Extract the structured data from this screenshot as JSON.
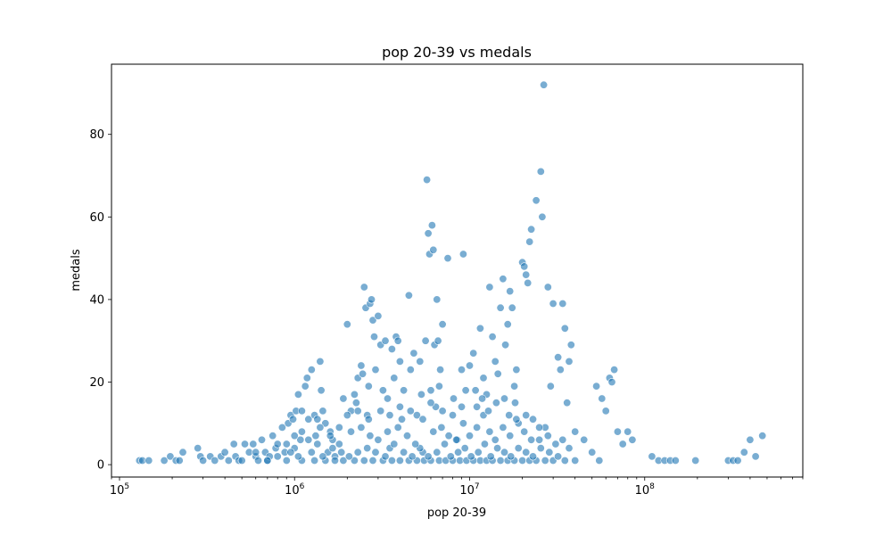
{
  "chart_data": {
    "type": "scatter",
    "title": "pop 20-39 vs medals",
    "xlabel": "pop 20-39",
    "ylabel": "medals",
    "x_scale": "log",
    "xlim": [
      90000,
      800000000
    ],
    "ylim": [
      -3,
      97
    ],
    "x_ticks": [
      100000,
      1000000,
      10000000,
      100000000
    ],
    "x_tick_labels": [
      {
        "base": "10",
        "exp": "5"
      },
      {
        "base": "10",
        "exp": "6"
      },
      {
        "base": "10",
        "exp": "7"
      },
      {
        "base": "10",
        "exp": "8"
      }
    ],
    "y_ticks": [
      0,
      20,
      40,
      60,
      80
    ],
    "y_tick_labels": [
      "0",
      "20",
      "40",
      "60",
      "80"
    ],
    "grid": false,
    "legend": "none",
    "color": "#1f77b4",
    "points": [
      [
        130000,
        1
      ],
      [
        135000,
        1
      ],
      [
        147000,
        1
      ],
      [
        180000,
        1
      ],
      [
        195000,
        2
      ],
      [
        210000,
        1
      ],
      [
        220000,
        1
      ],
      [
        230000,
        3
      ],
      [
        280000,
        4
      ],
      [
        290000,
        2
      ],
      [
        300000,
        1
      ],
      [
        330000,
        2
      ],
      [
        350000,
        1
      ],
      [
        380000,
        2
      ],
      [
        400000,
        3
      ],
      [
        420000,
        1
      ],
      [
        450000,
        5
      ],
      [
        460000,
        2
      ],
      [
        480000,
        1
      ],
      [
        520000,
        5
      ],
      [
        550000,
        3
      ],
      [
        580000,
        5
      ],
      [
        600000,
        2
      ],
      [
        620000,
        1
      ],
      [
        650000,
        6
      ],
      [
        680000,
        3
      ],
      [
        700000,
        1
      ],
      [
        720000,
        2
      ],
      [
        750000,
        7
      ],
      [
        780000,
        4
      ],
      [
        800000,
        5
      ],
      [
        850000,
        9
      ],
      [
        880000,
        3
      ],
      [
        900000,
        5
      ],
      [
        920000,
        10
      ],
      [
        950000,
        12
      ],
      [
        980000,
        11
      ],
      [
        1000000,
        4
      ],
      [
        1020000,
        13
      ],
      [
        1050000,
        17
      ],
      [
        1080000,
        6
      ],
      [
        1100000,
        8
      ],
      [
        1150000,
        19
      ],
      [
        1180000,
        21
      ],
      [
        1200000,
        11
      ],
      [
        1250000,
        23
      ],
      [
        1300000,
        12
      ],
      [
        1320000,
        7
      ],
      [
        1350000,
        5
      ],
      [
        1400000,
        25
      ],
      [
        1420000,
        18
      ],
      [
        1450000,
        13
      ],
      [
        1500000,
        10
      ],
      [
        1550000,
        3
      ],
      [
        1600000,
        8
      ],
      [
        1650000,
        6
      ],
      [
        1700000,
        2
      ],
      [
        1800000,
        9
      ],
      [
        1900000,
        16
      ],
      [
        2000000,
        34
      ],
      [
        2100000,
        13
      ],
      [
        2200000,
        17
      ],
      [
        2250000,
        15
      ],
      [
        2300000,
        21
      ],
      [
        2400000,
        24
      ],
      [
        2450000,
        22
      ],
      [
        2500000,
        43
      ],
      [
        2550000,
        38
      ],
      [
        2600000,
        12
      ],
      [
        2650000,
        19
      ],
      [
        2700000,
        39
      ],
      [
        2750000,
        40
      ],
      [
        2800000,
        35
      ],
      [
        2850000,
        31
      ],
      [
        2900000,
        23
      ],
      [
        3000000,
        36
      ],
      [
        3100000,
        29
      ],
      [
        3200000,
        18
      ],
      [
        3300000,
        30
      ],
      [
        3400000,
        16
      ],
      [
        3500000,
        4
      ],
      [
        3600000,
        28
      ],
      [
        3700000,
        21
      ],
      [
        3800000,
        31
      ],
      [
        3900000,
        30
      ],
      [
        4000000,
        25
      ],
      [
        4100000,
        11
      ],
      [
        4200000,
        18
      ],
      [
        4500000,
        41
      ],
      [
        4600000,
        23
      ],
      [
        4800000,
        27
      ],
      [
        5000000,
        12
      ],
      [
        5200000,
        25
      ],
      [
        5400000,
        3
      ],
      [
        5600000,
        30
      ],
      [
        5700000,
        69
      ],
      [
        5800000,
        56
      ],
      [
        5900000,
        51
      ],
      [
        6000000,
        18
      ],
      [
        6100000,
        58
      ],
      [
        6200000,
        52
      ],
      [
        6300000,
        29
      ],
      [
        6400000,
        14
      ],
      [
        6500000,
        40
      ],
      [
        6600000,
        30
      ],
      [
        6700000,
        19
      ],
      [
        6800000,
        23
      ],
      [
        7000000,
        34
      ],
      [
        7500000,
        50
      ],
      [
        8000000,
        12
      ],
      [
        8500000,
        6
      ],
      [
        9000000,
        23
      ],
      [
        9200000,
        51
      ],
      [
        9500000,
        18
      ],
      [
        10000000,
        24
      ],
      [
        10500000,
        27
      ],
      [
        11000000,
        14
      ],
      [
        11500000,
        33
      ],
      [
        12000000,
        21
      ],
      [
        12500000,
        17
      ],
      [
        13000000,
        43
      ],
      [
        13500000,
        31
      ],
      [
        14000000,
        25
      ],
      [
        14500000,
        22
      ],
      [
        15000000,
        38
      ],
      [
        15500000,
        45
      ],
      [
        16000000,
        29
      ],
      [
        16500000,
        34
      ],
      [
        17000000,
        42
      ],
      [
        17500000,
        38
      ],
      [
        18000000,
        19
      ],
      [
        18500000,
        23
      ],
      [
        19000000,
        10
      ],
      [
        20000000,
        49
      ],
      [
        20500000,
        48
      ],
      [
        21000000,
        46
      ],
      [
        21500000,
        44
      ],
      [
        22000000,
        54
      ],
      [
        22500000,
        57
      ],
      [
        23000000,
        11
      ],
      [
        24000000,
        64
      ],
      [
        25000000,
        6
      ],
      [
        25500000,
        71
      ],
      [
        26000000,
        60
      ],
      [
        26500000,
        92
      ],
      [
        27000000,
        9
      ],
      [
        28000000,
        43
      ],
      [
        29000000,
        19
      ],
      [
        30000000,
        39
      ],
      [
        32000000,
        26
      ],
      [
        33000000,
        23
      ],
      [
        34000000,
        39
      ],
      [
        35000000,
        33
      ],
      [
        36000000,
        15
      ],
      [
        37000000,
        25
      ],
      [
        38000000,
        29
      ],
      [
        40000000,
        8
      ],
      [
        45000000,
        6
      ],
      [
        50000000,
        3
      ],
      [
        53000000,
        19
      ],
      [
        55000000,
        1
      ],
      [
        57000000,
        16
      ],
      [
        60000000,
        13
      ],
      [
        63000000,
        21
      ],
      [
        65000000,
        20
      ],
      [
        67000000,
        23
      ],
      [
        70000000,
        8
      ],
      [
        75000000,
        5
      ],
      [
        80000000,
        8
      ],
      [
        85000000,
        6
      ],
      [
        110000000,
        2
      ],
      [
        120000000,
        1
      ],
      [
        130000000,
        1
      ],
      [
        140000000,
        1
      ],
      [
        150000000,
        1
      ],
      [
        195000000,
        1
      ],
      [
        300000000,
        1
      ],
      [
        320000000,
        1
      ],
      [
        340000000,
        1
      ],
      [
        370000000,
        3
      ],
      [
        400000000,
        6
      ],
      [
        430000000,
        2
      ],
      [
        470000000,
        7
      ],
      [
        500000,
        1
      ],
      [
        700000,
        1
      ],
      [
        900000,
        1
      ],
      [
        1100000,
        1
      ],
      [
        1300000,
        1
      ],
      [
        1500000,
        1
      ],
      [
        1700000,
        1
      ],
      [
        1900000,
        1
      ],
      [
        2200000,
        1
      ],
      [
        2500000,
        1
      ],
      [
        2800000,
        1
      ],
      [
        3200000,
        1
      ],
      [
        3600000,
        1
      ],
      [
        4000000,
        1
      ],
      [
        4500000,
        1
      ],
      [
        5000000,
        1
      ],
      [
        5500000,
        1
      ],
      [
        6000000,
        1
      ],
      [
        6700000,
        1
      ],
      [
        7300000,
        1
      ],
      [
        8000000,
        1
      ],
      [
        8800000,
        1
      ],
      [
        9600000,
        1
      ],
      [
        10500000,
        1
      ],
      [
        11500000,
        1
      ],
      [
        12500000,
        1
      ],
      [
        13500000,
        1
      ],
      [
        15000000,
        1
      ],
      [
        16500000,
        1
      ],
      [
        18000000,
        1
      ],
      [
        20000000,
        1
      ],
      [
        22000000,
        1
      ],
      [
        24000000,
        1
      ],
      [
        27000000,
        1
      ],
      [
        30000000,
        1
      ],
      [
        35000000,
        1
      ],
      [
        40000000,
        1
      ],
      [
        600000,
        3
      ],
      [
        800000,
        2
      ],
      [
        950000,
        3
      ],
      [
        1050000,
        2
      ],
      [
        1250000,
        3
      ],
      [
        1450000,
        2
      ],
      [
        1650000,
        4
      ],
      [
        1850000,
        3
      ],
      [
        2050000,
        2
      ],
      [
        2300000,
        3
      ],
      [
        2600000,
        4
      ],
      [
        2900000,
        3
      ],
      [
        3300000,
        2
      ],
      [
        3700000,
        5
      ],
      [
        4200000,
        3
      ],
      [
        4700000,
        2
      ],
      [
        5200000,
        4
      ],
      [
        5800000,
        2
      ],
      [
        6500000,
        3
      ],
      [
        7200000,
        5
      ],
      [
        7800000,
        2
      ],
      [
        8600000,
        3
      ],
      [
        9400000,
        4
      ],
      [
        10200000,
        2
      ],
      [
        11200000,
        3
      ],
      [
        12200000,
        5
      ],
      [
        13200000,
        2
      ],
      [
        14400000,
        4
      ],
      [
        15800000,
        3
      ],
      [
        17200000,
        2
      ],
      [
        19000000,
        4
      ],
      [
        21000000,
        3
      ],
      [
        23000000,
        2
      ],
      [
        25500000,
        4
      ],
      [
        28500000,
        3
      ],
      [
        32000000,
        2
      ],
      [
        37000000,
        4
      ],
      [
        1000000,
        7
      ],
      [
        1200000,
        6
      ],
      [
        1400000,
        9
      ],
      [
        1600000,
        7
      ],
      [
        1800000,
        5
      ],
      [
        2100000,
        8
      ],
      [
        2400000,
        9
      ],
      [
        2700000,
        7
      ],
      [
        3000000,
        6
      ],
      [
        3400000,
        8
      ],
      [
        3900000,
        9
      ],
      [
        4400000,
        7
      ],
      [
        4900000,
        5
      ],
      [
        5400000,
        11
      ],
      [
        6200000,
        8
      ],
      [
        6900000,
        9
      ],
      [
        7600000,
        7
      ],
      [
        8400000,
        6
      ],
      [
        9200000,
        10
      ],
      [
        10000000,
        7
      ],
      [
        11000000,
        9
      ],
      [
        12000000,
        12
      ],
      [
        13000000,
        8
      ],
      [
        14000000,
        6
      ],
      [
        15500000,
        9
      ],
      [
        17000000,
        7
      ],
      [
        18500000,
        11
      ],
      [
        20500000,
        8
      ],
      [
        22500000,
        6
      ],
      [
        25000000,
        9
      ],
      [
        28000000,
        7
      ],
      [
        31000000,
        5
      ],
      [
        34000000,
        6
      ],
      [
        1100000,
        13
      ],
      [
        1350000,
        11
      ],
      [
        2000000,
        12
      ],
      [
        2300000,
        13
      ],
      [
        2650000,
        11
      ],
      [
        3100000,
        13
      ],
      [
        3500000,
        12
      ],
      [
        4000000,
        14
      ],
      [
        4600000,
        13
      ],
      [
        5300000,
        17
      ],
      [
        6000000,
        15
      ],
      [
        7000000,
        13
      ],
      [
        8100000,
        16
      ],
      [
        9000000,
        14
      ],
      [
        10800000,
        18
      ],
      [
        11800000,
        16
      ],
      [
        12800000,
        13
      ],
      [
        14200000,
        15
      ],
      [
        15800000,
        16
      ],
      [
        16800000,
        12
      ],
      [
        18200000,
        15
      ],
      [
        21000000,
        12
      ]
    ]
  }
}
